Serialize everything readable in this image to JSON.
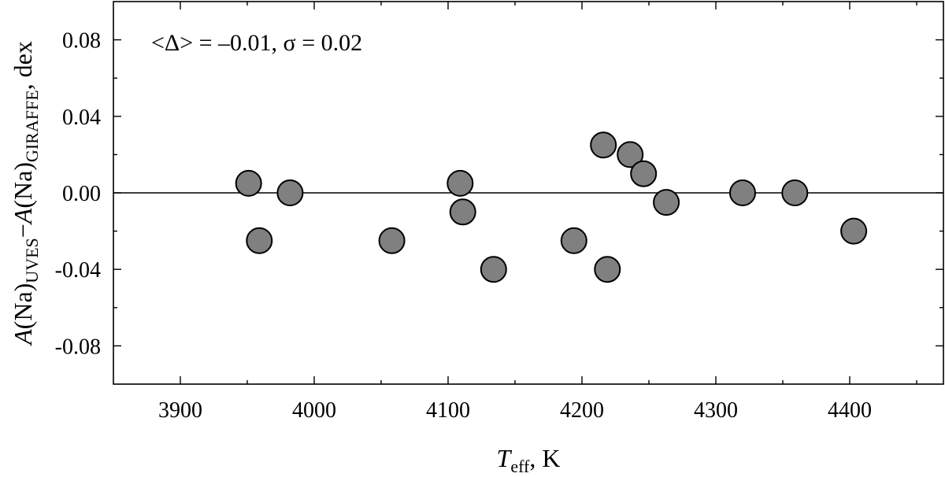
{
  "chart_data": {
    "type": "scatter",
    "title": "",
    "xlabel": {
      "main": "T",
      "sub": "eff",
      "suffix": ", K"
    },
    "ylabel": {
      "p1": "A",
      "p2": "(Na)",
      "p3": "UVES",
      "p4": "−",
      "p5": "A",
      "p6": "(Na)",
      "p7": "GIRAFFE",
      "p8": ", dex"
    },
    "xlim": [
      3850,
      4470
    ],
    "ylim": [
      -0.1,
      0.1
    ],
    "x_ticks": [
      3900,
      4000,
      4100,
      4200,
      4300,
      4400
    ],
    "x_tick_labels": [
      "3900",
      "4000",
      "4100",
      "4200",
      "4300",
      "4400"
    ],
    "y_ticks": [
      0.08,
      0.04,
      0.0,
      -0.04,
      -0.08
    ],
    "y_tick_labels": [
      "0.08",
      "0.04",
      "0.00",
      "-0.04",
      "-0.08"
    ],
    "annotation": "<Δ> = –0.01,  σ = 0.02",
    "reference_line_y": 0.0,
    "grid": false,
    "marker_fill": "#808080",
    "marker_edge": "#000000",
    "points": [
      {
        "x": 3951,
        "y": 0.005
      },
      {
        "x": 3959,
        "y": -0.025
      },
      {
        "x": 3982,
        "y": 0.0
      },
      {
        "x": 4058,
        "y": -0.025
      },
      {
        "x": 4109,
        "y": 0.005
      },
      {
        "x": 4111,
        "y": -0.01
      },
      {
        "x": 4134,
        "y": -0.04
      },
      {
        "x": 4194,
        "y": -0.025
      },
      {
        "x": 4216,
        "y": 0.025
      },
      {
        "x": 4219,
        "y": -0.04
      },
      {
        "x": 4236,
        "y": 0.02
      },
      {
        "x": 4246,
        "y": 0.01
      },
      {
        "x": 4263,
        "y": -0.005
      },
      {
        "x": 4320,
        "y": 0.0
      },
      {
        "x": 4359,
        "y": 0.0
      },
      {
        "x": 4403,
        "y": -0.02
      }
    ]
  }
}
